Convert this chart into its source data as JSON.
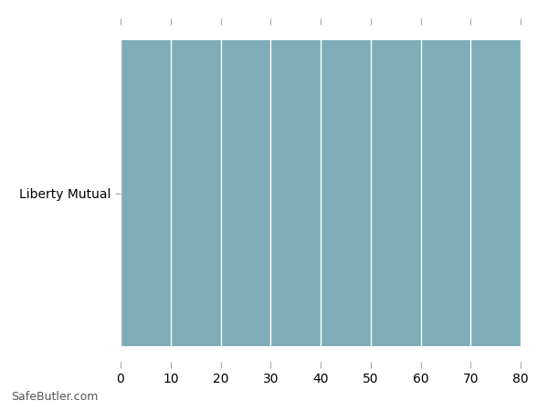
{
  "categories": [
    "Liberty Mutual"
  ],
  "values": [
    80
  ],
  "bar_color": "#7EADB8",
  "xlim": [
    0,
    80
  ],
  "xticks": [
    0,
    10,
    20,
    30,
    40,
    50,
    60,
    70,
    80
  ],
  "bar_height": 0.95,
  "background_color": "#ffffff",
  "grid_color": "#e8e8e8",
  "tick_label_fontsize": 10,
  "watermark": "SafeButler.com",
  "watermark_fontsize": 9
}
